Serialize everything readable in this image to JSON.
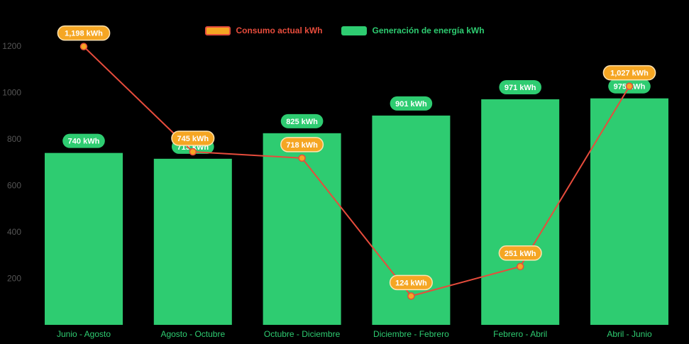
{
  "legend": {
    "consumo_label": "Consumo actual kWh",
    "generacion_label": "Generación de energía kWh"
  },
  "colors": {
    "background": "#000000",
    "bar": "#2ecc71",
    "line": "#e74c3c",
    "point_fill": "#f5a623",
    "point_stroke": "#e74c3c",
    "badge_green": "#2ecc71",
    "badge_orange": "#f5a623",
    "badge_orange_border": "#ffe3b0",
    "badge_text": "#ffffff",
    "y_axis_text": "#555555",
    "x_axis_text": "#2ecc71"
  },
  "chart_data": {
    "type": "bar+line",
    "title": "",
    "xlabel": "",
    "ylabel": "",
    "categories": [
      "Junio - Agosto",
      "Agosto - Octubre",
      "Octubre - Diciembre",
      "Diciembre - Febrero",
      "Febrero - Abril",
      "Abril - Junio"
    ],
    "series": [
      {
        "name": "Generación de energía kWh",
        "type": "bar",
        "values": [
          740,
          715,
          825,
          901,
          971,
          975
        ],
        "labels": [
          "740 kWh",
          "715 kWh",
          "825 kWh",
          "901 kWh",
          "971 kWh",
          "975 kWh"
        ]
      },
      {
        "name": "Consumo actual kWh",
        "type": "line",
        "values": [
          1198,
          745,
          718,
          124,
          251,
          1027
        ],
        "labels": [
          "1,198 kWh",
          "745 kWh",
          "718 kWh",
          "124 kWh",
          "251 kWh",
          "1,027 kWh"
        ]
      }
    ],
    "y_ticks": [
      200,
      400,
      600,
      800,
      1000,
      1200
    ],
    "ylim": [
      0,
      1200
    ],
    "grid": false,
    "legend_position": "top"
  }
}
